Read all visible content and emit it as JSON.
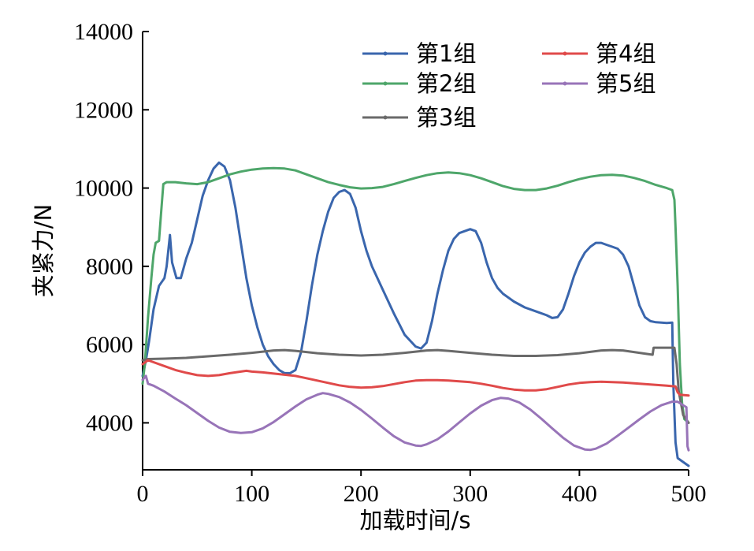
{
  "chart_data": {
    "type": "line",
    "title": "",
    "xlabel": "加载时间/s",
    "ylabel": "夹紧力/N",
    "xlim": [
      0,
      500
    ],
    "ylim": [
      2800,
      14000
    ],
    "xticks": [
      0,
      100,
      200,
      300,
      400,
      500
    ],
    "yticks": [
      4000,
      6000,
      8000,
      10000,
      12000,
      14000
    ],
    "grid": false,
    "legend": "top-right",
    "series": [
      {
        "name": "第1组",
        "color": "#3a66ad",
        "points": [
          [
            0,
            5200
          ],
          [
            3,
            5600
          ],
          [
            6,
            6100
          ],
          [
            10,
            6900
          ],
          [
            15,
            7500
          ],
          [
            20,
            7700
          ],
          [
            22,
            8000
          ],
          [
            25,
            8800
          ],
          [
            27,
            8100
          ],
          [
            31,
            7700
          ],
          [
            35,
            7700
          ],
          [
            40,
            8200
          ],
          [
            45,
            8600
          ],
          [
            50,
            9200
          ],
          [
            55,
            9800
          ],
          [
            60,
            10200
          ],
          [
            65,
            10500
          ],
          [
            70,
            10650
          ],
          [
            75,
            10550
          ],
          [
            80,
            10200
          ],
          [
            85,
            9500
          ],
          [
            90,
            8600
          ],
          [
            95,
            7700
          ],
          [
            100,
            7000
          ],
          [
            105,
            6450
          ],
          [
            110,
            6000
          ],
          [
            115,
            5700
          ],
          [
            120,
            5500
          ],
          [
            125,
            5350
          ],
          [
            130,
            5270
          ],
          [
            135,
            5270
          ],
          [
            140,
            5350
          ],
          [
            145,
            5800
          ],
          [
            150,
            6600
          ],
          [
            155,
            7500
          ],
          [
            160,
            8300
          ],
          [
            165,
            8900
          ],
          [
            170,
            9400
          ],
          [
            175,
            9750
          ],
          [
            180,
            9900
          ],
          [
            185,
            9950
          ],
          [
            190,
            9850
          ],
          [
            195,
            9500
          ],
          [
            200,
            8900
          ],
          [
            205,
            8400
          ],
          [
            210,
            8000
          ],
          [
            220,
            7400
          ],
          [
            230,
            6800
          ],
          [
            240,
            6250
          ],
          [
            250,
            5950
          ],
          [
            255,
            5900
          ],
          [
            260,
            6050
          ],
          [
            265,
            6600
          ],
          [
            270,
            7300
          ],
          [
            275,
            7900
          ],
          [
            280,
            8400
          ],
          [
            285,
            8700
          ],
          [
            290,
            8850
          ],
          [
            300,
            8950
          ],
          [
            305,
            8900
          ],
          [
            310,
            8600
          ],
          [
            315,
            8100
          ],
          [
            320,
            7700
          ],
          [
            325,
            7450
          ],
          [
            330,
            7300
          ],
          [
            340,
            7100
          ],
          [
            350,
            6950
          ],
          [
            360,
            6850
          ],
          [
            370,
            6750
          ],
          [
            375,
            6680
          ],
          [
            380,
            6700
          ],
          [
            385,
            6900
          ],
          [
            390,
            7300
          ],
          [
            395,
            7750
          ],
          [
            400,
            8100
          ],
          [
            405,
            8350
          ],
          [
            410,
            8500
          ],
          [
            415,
            8600
          ],
          [
            420,
            8600
          ],
          [
            425,
            8550
          ],
          [
            430,
            8500
          ],
          [
            435,
            8450
          ],
          [
            440,
            8300
          ],
          [
            445,
            8000
          ],
          [
            450,
            7500
          ],
          [
            455,
            7000
          ],
          [
            460,
            6700
          ],
          [
            465,
            6600
          ],
          [
            470,
            6570
          ],
          [
            475,
            6560
          ],
          [
            480,
            6550
          ],
          [
            485,
            6560
          ],
          [
            486,
            5000
          ],
          [
            488,
            3500
          ],
          [
            490,
            3100
          ],
          [
            495,
            3000
          ],
          [
            500,
            2900
          ]
        ]
      },
      {
        "name": "第2组",
        "color": "#4ea66a",
        "points": [
          [
            0,
            5000
          ],
          [
            2,
            5500
          ],
          [
            5,
            6700
          ],
          [
            8,
            7700
          ],
          [
            10,
            8300
          ],
          [
            12,
            8600
          ],
          [
            15,
            8650
          ],
          [
            17,
            9400
          ],
          [
            19,
            10100
          ],
          [
            22,
            10150
          ],
          [
            30,
            10150
          ],
          [
            40,
            10120
          ],
          [
            50,
            10100
          ],
          [
            60,
            10150
          ],
          [
            70,
            10250
          ],
          [
            80,
            10350
          ],
          [
            90,
            10420
          ],
          [
            100,
            10470
          ],
          [
            110,
            10500
          ],
          [
            120,
            10510
          ],
          [
            130,
            10500
          ],
          [
            140,
            10450
          ],
          [
            150,
            10350
          ],
          [
            160,
            10250
          ],
          [
            170,
            10150
          ],
          [
            180,
            10080
          ],
          [
            190,
            10020
          ],
          [
            200,
            9990
          ],
          [
            210,
            10000
          ],
          [
            220,
            10030
          ],
          [
            230,
            10100
          ],
          [
            240,
            10180
          ],
          [
            250,
            10260
          ],
          [
            260,
            10330
          ],
          [
            270,
            10380
          ],
          [
            280,
            10400
          ],
          [
            290,
            10380
          ],
          [
            300,
            10330
          ],
          [
            310,
            10250
          ],
          [
            320,
            10150
          ],
          [
            330,
            10050
          ],
          [
            340,
            9980
          ],
          [
            350,
            9950
          ],
          [
            360,
            9950
          ],
          [
            370,
            9990
          ],
          [
            380,
            10060
          ],
          [
            390,
            10150
          ],
          [
            400,
            10230
          ],
          [
            410,
            10290
          ],
          [
            420,
            10330
          ],
          [
            430,
            10340
          ],
          [
            440,
            10320
          ],
          [
            450,
            10260
          ],
          [
            460,
            10180
          ],
          [
            470,
            10080
          ],
          [
            480,
            10000
          ],
          [
            485,
            9950
          ],
          [
            487,
            9700
          ],
          [
            488,
            9000
          ],
          [
            490,
            7500
          ],
          [
            492,
            5500
          ],
          [
            494,
            4500
          ],
          [
            496,
            4100
          ],
          [
            500,
            4000
          ]
        ]
      },
      {
        "name": "第3组",
        "color": "#6a6a6a",
        "points": [
          [
            0,
            5600
          ],
          [
            5,
            5630
          ],
          [
            20,
            5640
          ],
          [
            40,
            5660
          ],
          [
            60,
            5700
          ],
          [
            80,
            5740
          ],
          [
            100,
            5790
          ],
          [
            120,
            5850
          ],
          [
            130,
            5860
          ],
          [
            140,
            5840
          ],
          [
            160,
            5780
          ],
          [
            180,
            5740
          ],
          [
            200,
            5720
          ],
          [
            220,
            5740
          ],
          [
            240,
            5790
          ],
          [
            260,
            5850
          ],
          [
            270,
            5860
          ],
          [
            280,
            5840
          ],
          [
            300,
            5790
          ],
          [
            320,
            5740
          ],
          [
            340,
            5710
          ],
          [
            360,
            5710
          ],
          [
            380,
            5730
          ],
          [
            400,
            5780
          ],
          [
            420,
            5850
          ],
          [
            430,
            5860
          ],
          [
            440,
            5850
          ],
          [
            460,
            5770
          ],
          [
            467,
            5740
          ],
          [
            468,
            5920
          ],
          [
            475,
            5920
          ],
          [
            487,
            5920
          ],
          [
            489,
            5500
          ],
          [
            491,
            4800
          ],
          [
            495,
            4200
          ],
          [
            500,
            4000
          ]
        ]
      },
      {
        "name": "第4组",
        "color": "#e04a4a",
        "points": [
          [
            0,
            5500
          ],
          [
            5,
            5600
          ],
          [
            10,
            5550
          ],
          [
            20,
            5450
          ],
          [
            30,
            5350
          ],
          [
            40,
            5280
          ],
          [
            50,
            5220
          ],
          [
            60,
            5200
          ],
          [
            70,
            5220
          ],
          [
            80,
            5270
          ],
          [
            90,
            5310
          ],
          [
            95,
            5330
          ],
          [
            100,
            5310
          ],
          [
            110,
            5290
          ],
          [
            120,
            5260
          ],
          [
            130,
            5230
          ],
          [
            140,
            5200
          ],
          [
            150,
            5140
          ],
          [
            160,
            5080
          ],
          [
            170,
            5020
          ],
          [
            180,
            4960
          ],
          [
            190,
            4920
          ],
          [
            200,
            4900
          ],
          [
            210,
            4910
          ],
          [
            220,
            4940
          ],
          [
            230,
            4990
          ],
          [
            240,
            5040
          ],
          [
            250,
            5080
          ],
          [
            260,
            5090
          ],
          [
            270,
            5090
          ],
          [
            280,
            5080
          ],
          [
            290,
            5060
          ],
          [
            300,
            5040
          ],
          [
            310,
            5000
          ],
          [
            320,
            4950
          ],
          [
            330,
            4890
          ],
          [
            340,
            4850
          ],
          [
            350,
            4830
          ],
          [
            360,
            4830
          ],
          [
            370,
            4860
          ],
          [
            380,
            4920
          ],
          [
            390,
            4980
          ],
          [
            400,
            5020
          ],
          [
            410,
            5040
          ],
          [
            420,
            5050
          ],
          [
            430,
            5040
          ],
          [
            440,
            5030
          ],
          [
            450,
            5010
          ],
          [
            460,
            4990
          ],
          [
            470,
            4970
          ],
          [
            480,
            4950
          ],
          [
            488,
            4930
          ],
          [
            490,
            4780
          ],
          [
            492,
            4720
          ],
          [
            500,
            4700
          ]
        ]
      },
      {
        "name": "第5组",
        "color": "#9874b8",
        "points": [
          [
            0,
            5100
          ],
          [
            3,
            5200
          ],
          [
            5,
            5000
          ],
          [
            10,
            4950
          ],
          [
            20,
            4800
          ],
          [
            30,
            4620
          ],
          [
            40,
            4450
          ],
          [
            50,
            4250
          ],
          [
            60,
            4050
          ],
          [
            70,
            3880
          ],
          [
            80,
            3770
          ],
          [
            90,
            3740
          ],
          [
            100,
            3760
          ],
          [
            110,
            3860
          ],
          [
            120,
            4020
          ],
          [
            130,
            4220
          ],
          [
            140,
            4420
          ],
          [
            150,
            4600
          ],
          [
            160,
            4720
          ],
          [
            165,
            4760
          ],
          [
            170,
            4740
          ],
          [
            180,
            4660
          ],
          [
            190,
            4520
          ],
          [
            200,
            4330
          ],
          [
            210,
            4110
          ],
          [
            220,
            3880
          ],
          [
            230,
            3660
          ],
          [
            240,
            3500
          ],
          [
            250,
            3420
          ],
          [
            255,
            3410
          ],
          [
            260,
            3450
          ],
          [
            270,
            3580
          ],
          [
            280,
            3780
          ],
          [
            290,
            4010
          ],
          [
            300,
            4240
          ],
          [
            310,
            4440
          ],
          [
            320,
            4580
          ],
          [
            328,
            4640
          ],
          [
            335,
            4620
          ],
          [
            345,
            4520
          ],
          [
            355,
            4340
          ],
          [
            365,
            4110
          ],
          [
            375,
            3860
          ],
          [
            385,
            3620
          ],
          [
            395,
            3420
          ],
          [
            405,
            3320
          ],
          [
            410,
            3310
          ],
          [
            415,
            3340
          ],
          [
            425,
            3470
          ],
          [
            435,
            3670
          ],
          [
            445,
            3880
          ],
          [
            455,
            4090
          ],
          [
            465,
            4290
          ],
          [
            475,
            4450
          ],
          [
            485,
            4540
          ],
          [
            490,
            4540
          ],
          [
            495,
            4450
          ],
          [
            498,
            4400
          ],
          [
            499,
            3400
          ],
          [
            500,
            3300
          ]
        ]
      }
    ]
  }
}
